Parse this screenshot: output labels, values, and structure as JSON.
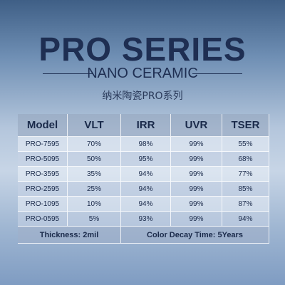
{
  "header": {
    "title": "PRO SERIES",
    "subtitle": "NANO CERAMIC",
    "subtitle_cn": "纳米陶瓷PRO系列"
  },
  "table": {
    "columns": [
      "Model",
      "VLT",
      "IRR",
      "UVR",
      "TSER"
    ],
    "rows": [
      [
        "PRO-7595",
        "70%",
        "98%",
        "99%",
        "55%"
      ],
      [
        "PRO-5095",
        "50%",
        "95%",
        "99%",
        "68%"
      ],
      [
        "PRO-3595",
        "35%",
        "94%",
        "99%",
        "77%"
      ],
      [
        "PRO-2595",
        "25%",
        "94%",
        "99%",
        "85%"
      ],
      [
        "PRO-1095",
        "10%",
        "94%",
        "99%",
        "87%"
      ],
      [
        "PRO-0595",
        "5%",
        "93%",
        "99%",
        "94%"
      ]
    ],
    "footer": [
      "Thickness: 2mil",
      "Color Decay Time: 5Years"
    ]
  }
}
